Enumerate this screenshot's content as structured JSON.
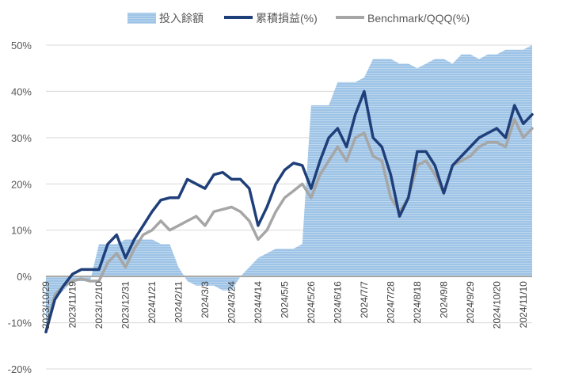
{
  "chart_data": {
    "type": "line",
    "title": "",
    "xlabel": "",
    "ylabel": "",
    "ylim": [
      -20,
      50
    ],
    "y_ticks": [
      "50%",
      "40%",
      "30%",
      "20%",
      "10%",
      "0%",
      "-10%",
      "-20%"
    ],
    "y_tick_values": [
      50,
      40,
      30,
      20,
      10,
      0,
      -10,
      -20
    ],
    "grid": "horizontal",
    "legend": "top",
    "colors": {
      "area": "#9dc3e6",
      "cumulative": "#1f3f7a",
      "benchmark": "#a6a6a6",
      "zero_line": "#a6a6a6"
    },
    "x_tick_labels": [
      "2023/10/29",
      "2023/11/19",
      "2023/12/10",
      "2023/12/31",
      "2024/1/21",
      "2024/2/11",
      "2024/3/3",
      "2024/3/24",
      "2024/4/14",
      "2024/5/5",
      "2024/5/26",
      "2024/6/16",
      "2024/7/7",
      "2024/7/28",
      "2024/8/18",
      "2024/9/8",
      "2024/9/29",
      "2024/10/20",
      "2024/11/10"
    ],
    "x": [
      "2023/10/29",
      "2023/11/5",
      "2023/11/12",
      "2023/11/19",
      "2023/11/26",
      "2023/12/3",
      "2023/12/10",
      "2023/12/17",
      "2023/12/24",
      "2023/12/31",
      "2024/1/7",
      "2024/1/14",
      "2024/1/21",
      "2024/1/28",
      "2024/2/4",
      "2024/2/11",
      "2024/2/18",
      "2024/2/25",
      "2024/3/3",
      "2024/3/10",
      "2024/3/17",
      "2024/3/24",
      "2024/3/31",
      "2024/4/7",
      "2024/4/14",
      "2024/4/21",
      "2024/4/28",
      "2024/5/5",
      "2024/5/12",
      "2024/5/19",
      "2024/5/26",
      "2024/6/2",
      "2024/6/9",
      "2024/6/16",
      "2024/6/23",
      "2024/6/30",
      "2024/7/7",
      "2024/7/14",
      "2024/7/21",
      "2024/7/28",
      "2024/8/4",
      "2024/8/11",
      "2024/8/18",
      "2024/8/25",
      "2024/9/1",
      "2024/9/8",
      "2024/9/15",
      "2024/9/22",
      "2024/9/29",
      "2024/10/6",
      "2024/10/13",
      "2024/10/20",
      "2024/10/27",
      "2024/11/3",
      "2024/11/10",
      "2024/11/17"
    ],
    "series": [
      {
        "name": "投入餘額",
        "kind": "area",
        "values": [
          -12,
          -5,
          -3,
          -1,
          -1,
          -1,
          7,
          7,
          7,
          8,
          8,
          8,
          8,
          7,
          7,
          2,
          -1,
          -2,
          -2,
          -2,
          -3,
          -3,
          0,
          2,
          4,
          5,
          6,
          6,
          6,
          7,
          37,
          37,
          37,
          42,
          42,
          42,
          43,
          47,
          47,
          47,
          46,
          46,
          45,
          46,
          47,
          47,
          46,
          48,
          48,
          47,
          48,
          48,
          49,
          49,
          49,
          50
        ]
      },
      {
        "name": "累積損益(%)",
        "kind": "line",
        "values": [
          -12,
          -5,
          -2,
          0.5,
          1.5,
          1.5,
          1.5,
          7,
          9,
          4,
          8,
          11,
          14,
          16.5,
          17,
          17,
          21,
          20,
          19,
          22,
          22.5,
          21,
          21,
          19,
          11,
          15,
          20,
          23,
          24.5,
          24,
          19,
          25,
          30,
          32,
          28,
          35,
          40,
          30,
          28,
          22,
          13,
          17,
          27,
          27,
          24,
          18,
          24,
          26,
          28,
          30,
          31,
          32,
          30,
          37,
          33,
          35
        ]
      },
      {
        "name": "Benchmark/QQQ(%)",
        "kind": "line",
        "values": [
          -12,
          -4,
          -2,
          -1,
          -0.5,
          -1,
          -1,
          3,
          5,
          2,
          6,
          9,
          10,
          12,
          10,
          11,
          12,
          13,
          11,
          14,
          14.5,
          15,
          14,
          12,
          8,
          10,
          14,
          17,
          18.5,
          20,
          17,
          22,
          25,
          28,
          25,
          30,
          31,
          26,
          25,
          17,
          14,
          17,
          24,
          25,
          22,
          18,
          24,
          25,
          26,
          28,
          29,
          29,
          28,
          34,
          30,
          32
        ]
      }
    ]
  }
}
